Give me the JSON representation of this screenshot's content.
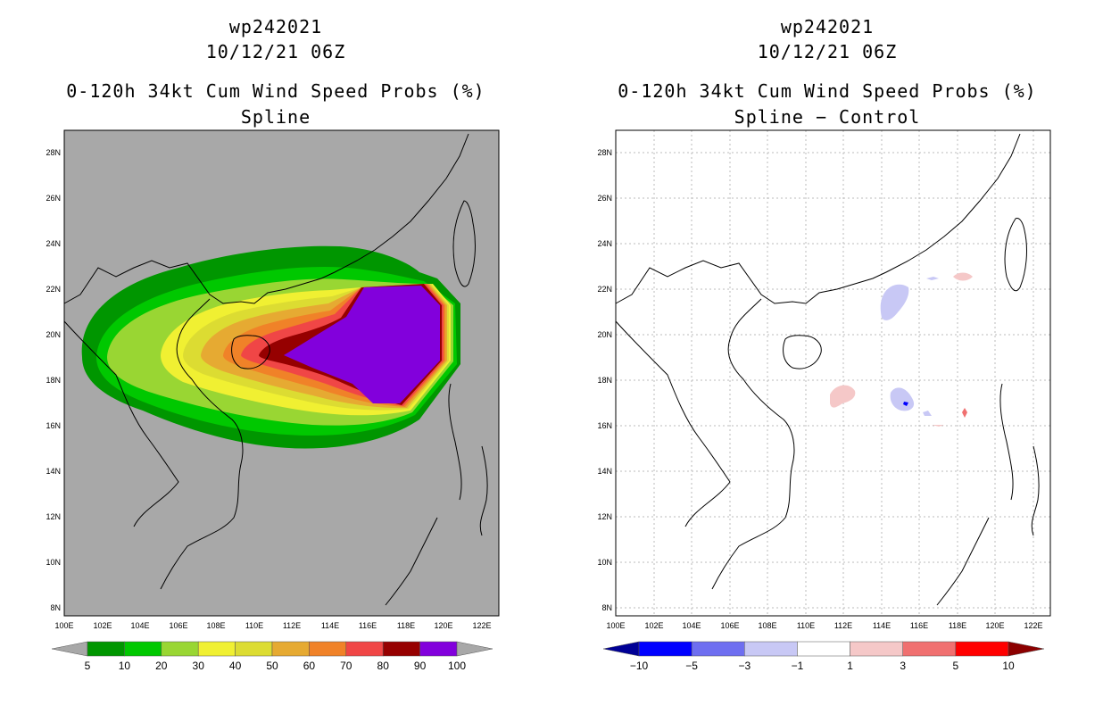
{
  "panels": [
    {
      "id": "left",
      "storm_id": "wp242021",
      "datetime": "10/12/21 06Z",
      "product": "0-120h 34kt Cum Wind Speed Probs (%)",
      "subtitle": "Spline",
      "background": "#a8a8a8",
      "colorbar": {
        "labels": [
          "5",
          "10",
          "20",
          "30",
          "40",
          "50",
          "60",
          "70",
          "80",
          "90",
          "100"
        ],
        "colors": [
          "#009600",
          "#00c800",
          "#99d633",
          "#f0f032",
          "#dcdc32",
          "#e6aa32",
          "#f08228",
          "#f04646",
          "#960000",
          "#8200dc"
        ],
        "under": "#a8a8a8",
        "over": "#a8a8a8"
      }
    },
    {
      "id": "right",
      "storm_id": "wp242021",
      "datetime": "10/12/21 06Z",
      "product": "0-120h 34kt Cum Wind Speed Probs (%)",
      "subtitle": "Spline − Control",
      "background": "#ffffff",
      "colorbar": {
        "labels": [
          "−10",
          "−5",
          "−3",
          "−1",
          "1",
          "3",
          "5",
          "10"
        ],
        "colors": [
          "#0000ff",
          "#6e6ef0",
          "#c8c8f5",
          "#ffffff",
          "#f5c8c8",
          "#f07070",
          "#ff0000"
        ],
        "under": "#000096",
        "over": "#8c0000"
      }
    }
  ],
  "axes": {
    "lat_labels": [
      "28N",
      "26N",
      "24N",
      "22N",
      "20N",
      "18N",
      "16N",
      "14N",
      "12N",
      "10N",
      "8N"
    ],
    "lon_labels": [
      "100E",
      "102E",
      "104E",
      "106E",
      "108E",
      "110E",
      "112E",
      "114E",
      "116E",
      "118E",
      "120E",
      "122E"
    ]
  }
}
